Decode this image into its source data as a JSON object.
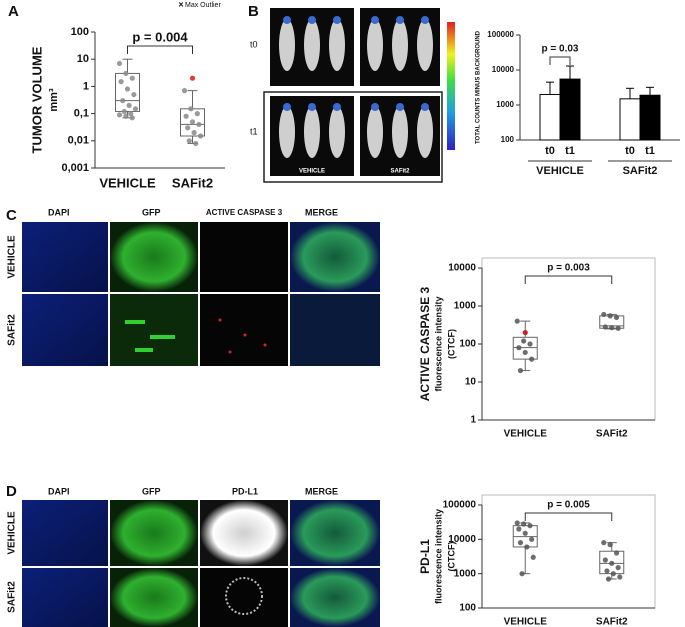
{
  "figure": {
    "panels": [
      "A",
      "B",
      "C",
      "D"
    ],
    "B": {
      "rows": [
        "t0",
        "t1"
      ],
      "groups": [
        "VEHICLE",
        "SAFit2"
      ]
    },
    "C": {
      "columns": [
        "DAPI",
        "GFP",
        "ACTIVE CASPASE 3",
        "MERGE"
      ],
      "rows": [
        "VEHICLE",
        "SAFit2"
      ]
    },
    "D": {
      "columns": [
        "DAPI",
        "GFP",
        "PD-L1",
        "MERGE"
      ],
      "rows": [
        "VEHICLE",
        "SAFit2"
      ]
    }
  },
  "chart_data": [
    {
      "type": "box",
      "log": true,
      "frame": false,
      "y_label": [
        "TUMOR VOLUME",
        "mm³"
      ],
      "annotation": "p = 0.004",
      "legend": "Max Outlier",
      "outlier_color": "#e03a3a",
      "point_color": "#888888",
      "categories": [
        "VEHICLE",
        "SAFit2"
      ],
      "boxes": [
        {
          "whisker_low": 0.07,
          "q1": 0.12,
          "median": 0.3,
          "q3": 3,
          "whisker_high": 10,
          "points": [
            7,
            3,
            2,
            1.5,
            0.8,
            0.5,
            0.3,
            0.2,
            0.15,
            0.12,
            0.1,
            0.09,
            0.08,
            0.07
          ],
          "outliers": []
        },
        {
          "whisker_low": 0.008,
          "q1": 0.015,
          "median": 0.04,
          "q3": 0.15,
          "whisker_high": 0.7,
          "points": [
            0.7,
            0.15,
            0.1,
            0.08,
            0.05,
            0.04,
            0.03,
            0.02,
            0.015,
            0.01,
            0.008
          ],
          "outliers": [
            2
          ]
        }
      ],
      "ylim": [
        0.001,
        100
      ],
      "yticks": [
        {
          "value": 0.001,
          "label": "0,001"
        },
        {
          "value": 0.01,
          "label": "0,01"
        },
        {
          "value": 0.1,
          "label": "0,1"
        },
        1,
        10,
        100
      ]
    },
    {
      "type": "bar",
      "log": true,
      "y_label": [
        "TOTAL COUNTS MINUS BACKGROUND"
      ],
      "annotation": "p = 0.03",
      "categories": [
        "VEHICLE",
        "SAFit2"
      ],
      "series": [
        {
          "name": "t0",
          "color": "#ffffff",
          "values": [
            2000,
            1500
          ],
          "errors": [
            2500,
            1500
          ]
        },
        {
          "name": "t1",
          "color": "#000000",
          "values": [
            5500,
            1900
          ],
          "errors": [
            7500,
            1300
          ]
        }
      ],
      "ylim": [
        100,
        100000
      ],
      "yticks": [
        100,
        1000,
        10000,
        100000
      ]
    },
    {
      "type": "box",
      "log": true,
      "frame": true,
      "y_label": [
        "ACTIVE CASPASE 3",
        "fluorescence intensity",
        "(CTCF)"
      ],
      "annotation": "p = 0.003",
      "outlier_color": "#d02020",
      "point_color": "#555555",
      "categories": [
        "VEHICLE",
        "SAFit2"
      ],
      "boxes": [
        {
          "whisker_low": 20,
          "q1": 40,
          "median": 80,
          "q3": 150,
          "whisker_high": 400,
          "points": [
            400,
            120,
            100,
            80,
            60,
            40,
            20
          ],
          "outliers": [
            200
          ]
        },
        {
          "whisker_low": 250,
          "q1": 260,
          "median": 300,
          "q3": 550,
          "whisker_high": 600,
          "points": [
            600,
            550,
            500,
            280,
            270,
            260
          ],
          "outliers": []
        }
      ],
      "ylim": [
        1,
        10000
      ],
      "yticks": [
        1,
        10,
        100,
        1000,
        10000
      ]
    },
    {
      "type": "box",
      "log": true,
      "frame": true,
      "y_label": [
        "PD-L1",
        "fluorescence intensity",
        "(CTCF)"
      ],
      "annotation": "p = 0.005",
      "point_color": "#555555",
      "categories": [
        "VEHICLE",
        "SAFit2"
      ],
      "boxes": [
        {
          "whisker_low": 1000,
          "q1": 6000,
          "median": 12000,
          "q3": 25000,
          "whisker_high": 30000,
          "points": [
            30000,
            28000,
            25000,
            20000,
            15000,
            10000,
            8000,
            6000,
            3000,
            1000
          ],
          "outliers": []
        },
        {
          "whisker_low": 700,
          "q1": 1000,
          "median": 2000,
          "q3": 4500,
          "whisker_high": 8000,
          "points": [
            8000,
            7000,
            4000,
            2500,
            2000,
            1500,
            1200,
            1000,
            800,
            700
          ],
          "outliers": []
        }
      ],
      "ylim": [
        100,
        100000
      ],
      "yticks": [
        100,
        1000,
        10000,
        100000
      ]
    }
  ]
}
